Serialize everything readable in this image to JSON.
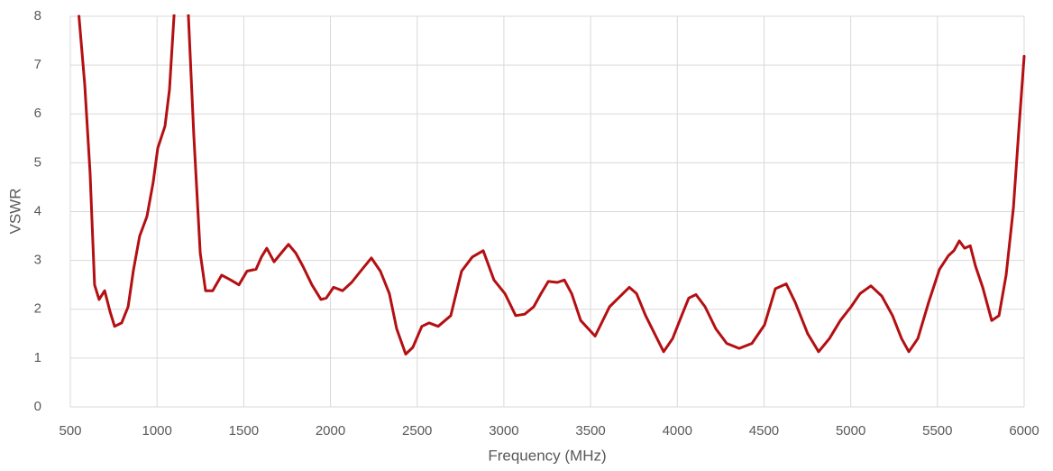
{
  "chart_data": {
    "type": "line",
    "x_label": "Frequency (MHz)",
    "y_label": "VSWR",
    "xlim": [
      500,
      6000
    ],
    "xticks": [
      500,
      1000,
      1500,
      2000,
      2500,
      3000,
      3500,
      4000,
      4500,
      5000,
      5500,
      6000
    ],
    "ylim": [
      0,
      8
    ],
    "yticks": [
      0,
      1,
      2,
      3,
      4,
      5,
      6,
      7,
      8
    ],
    "grid": true,
    "x": [
      550,
      583,
      614,
      640,
      666,
      698,
      729,
      755,
      796,
      833,
      864,
      900,
      942,
      978,
      1004,
      1046,
      1072,
      1098,
      1110,
      1160,
      1181,
      1212,
      1249,
      1280,
      1321,
      1373,
      1425,
      1472,
      1519,
      1571,
      1602,
      1633,
      1675,
      1716,
      1758,
      1800,
      1841,
      1893,
      1945,
      1976,
      2018,
      2070,
      2122,
      2174,
      2236,
      2288,
      2340,
      2382,
      2434,
      2475,
      2527,
      2569,
      2621,
      2694,
      2756,
      2818,
      2881,
      2943,
      3006,
      3068,
      3120,
      3172,
      3214,
      3256,
      3308,
      3349,
      3391,
      3443,
      3526,
      3609,
      3672,
      3723,
      3765,
      3817,
      3869,
      3921,
      3973,
      4025,
      4066,
      4108,
      4160,
      4222,
      4285,
      4357,
      4430,
      4503,
      4565,
      4628,
      4680,
      4752,
      4815,
      4877,
      4940,
      5002,
      5054,
      5116,
      5179,
      5241,
      5293,
      5335,
      5387,
      5449,
      5512,
      5564,
      5595,
      5626,
      5657,
      5689,
      5720,
      5761,
      5813,
      5855,
      5896,
      5938,
      5969,
      6000
    ],
    "series": [
      {
        "color": "#b40f12",
        "values": [
          8.0,
          6.6,
          4.8,
          2.5,
          2.2,
          2.38,
          1.95,
          1.65,
          1.72,
          2.05,
          2.8,
          3.5,
          3.9,
          4.6,
          5.3,
          5.75,
          6.5,
          8.0,
          9.5,
          9.5,
          8.0,
          5.55,
          3.15,
          2.38,
          2.38,
          2.7,
          2.6,
          2.5,
          2.78,
          2.82,
          3.07,
          3.25,
          2.97,
          3.15,
          3.33,
          3.15,
          2.88,
          2.5,
          2.2,
          2.23,
          2.45,
          2.38,
          2.55,
          2.78,
          3.05,
          2.78,
          2.32,
          1.6,
          1.08,
          1.22,
          1.65,
          1.72,
          1.65,
          1.87,
          2.78,
          3.07,
          3.2,
          2.6,
          2.32,
          1.87,
          1.9,
          2.05,
          2.32,
          2.57,
          2.55,
          2.6,
          2.32,
          1.77,
          1.45,
          2.05,
          2.27,
          2.45,
          2.32,
          1.87,
          1.5,
          1.13,
          1.4,
          1.87,
          2.23,
          2.3,
          2.05,
          1.6,
          1.3,
          1.2,
          1.3,
          1.68,
          2.42,
          2.52,
          2.14,
          1.5,
          1.13,
          1.4,
          1.77,
          2.05,
          2.32,
          2.48,
          2.27,
          1.87,
          1.4,
          1.13,
          1.4,
          2.14,
          2.82,
          3.1,
          3.2,
          3.4,
          3.25,
          3.3,
          2.88,
          2.45,
          1.77,
          1.87,
          2.7,
          4.08,
          5.65,
          7.18
        ]
      }
    ]
  }
}
